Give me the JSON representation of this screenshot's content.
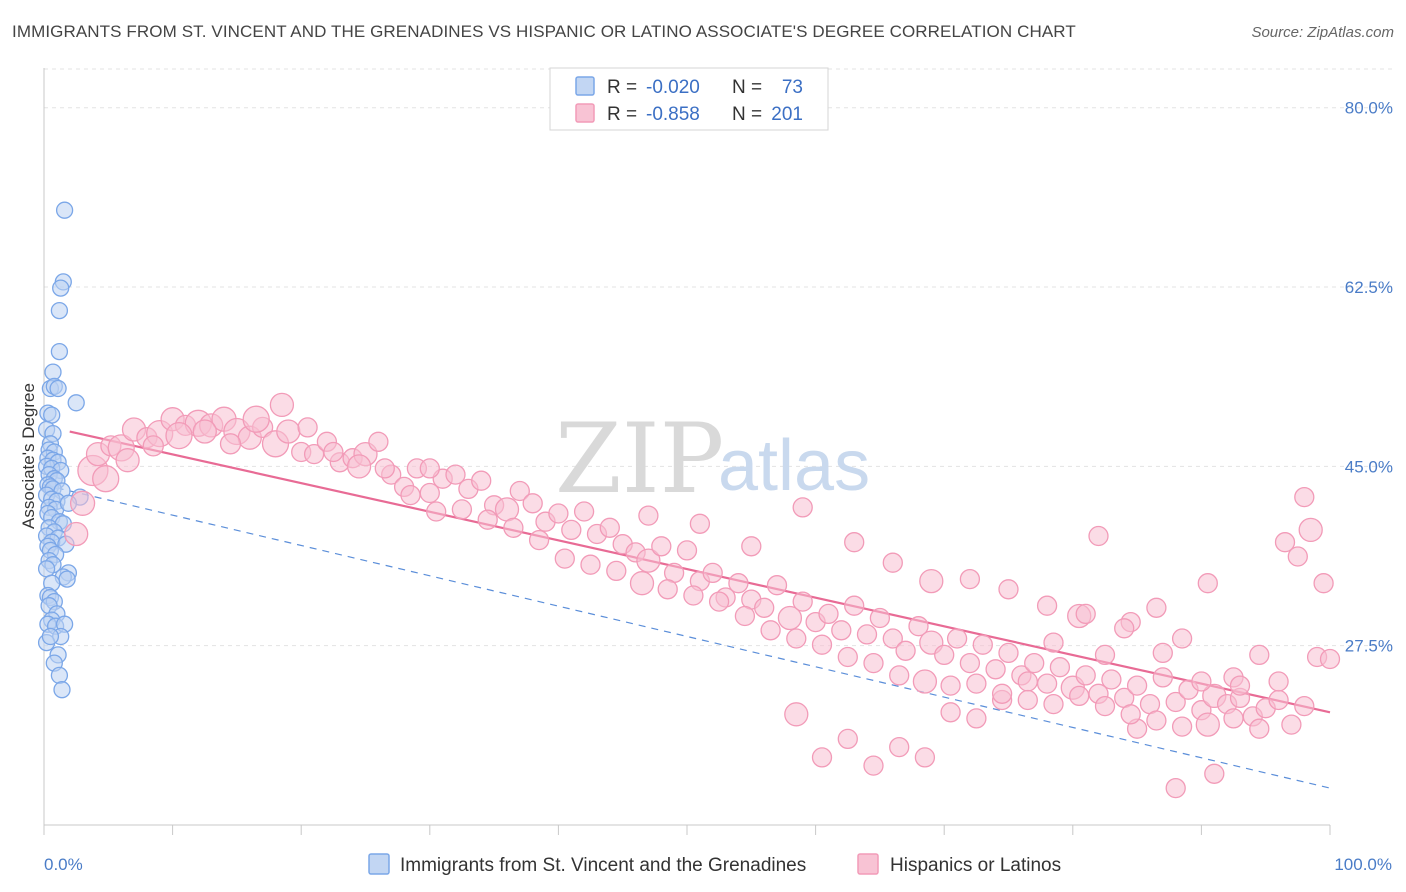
{
  "title": "IMMIGRANTS FROM ST. VINCENT AND THE GRENADINES VS HISPANIC OR LATINO ASSOCIATE'S DEGREE CORRELATION CHART",
  "source": "Source: ZipAtlas.com",
  "watermark": {
    "zip": "ZIP",
    "atlas": "atlas"
  },
  "legend": {
    "r_label": "R =",
    "n_label": "N =",
    "rows": [
      {
        "r": "-0.020",
        "n": "73",
        "color": "#7ba7e8"
      },
      {
        "r": "-0.858",
        "n": "201",
        "color": "#f29bb8"
      }
    ]
  },
  "bottom_legend": [
    {
      "label": "Immigrants from St. Vincent and the Grenadines",
      "color": "#7ba7e8"
    },
    {
      "label": "Hispanics or Latinos",
      "color": "#f29bb8"
    }
  ],
  "chart_data": {
    "type": "scatter",
    "title": "IMMIGRANTS FROM ST. VINCENT AND THE GRENADINES VS HISPANIC OR LATINO ASSOCIATE'S DEGREE CORRELATION CHART",
    "xlabel": "",
    "ylabel": "Associate's Degree",
    "xlim": [
      0,
      100
    ],
    "ylim": [
      10,
      83
    ],
    "x_ticks": [
      "0.0%",
      "100.0%"
    ],
    "y_ticks": [
      {
        "value": 80.0,
        "label": "80.0%"
      },
      {
        "value": 62.5,
        "label": "62.5%"
      },
      {
        "value": 45.0,
        "label": "45.0%"
      },
      {
        "value": 27.5,
        "label": "27.5%"
      }
    ],
    "grid": true,
    "legend_position": "top-center",
    "series": [
      {
        "name": "Immigrants from St. Vincent and the Grenadines",
        "color": "#7ba7e8",
        "trend": {
          "x": [
            0,
            100
          ],
          "y": [
            43.2,
            13.6
          ],
          "style": "dashed"
        },
        "points": [
          [
            1.6,
            70.0
          ],
          [
            1.5,
            63.0
          ],
          [
            1.3,
            62.4
          ],
          [
            1.2,
            60.2
          ],
          [
            1.2,
            56.2
          ],
          [
            0.7,
            54.2
          ],
          [
            0.5,
            52.6
          ],
          [
            0.8,
            52.8
          ],
          [
            1.1,
            52.6
          ],
          [
            2.5,
            51.2
          ],
          [
            0.3,
            50.2
          ],
          [
            0.6,
            50.0
          ],
          [
            0.2,
            48.6
          ],
          [
            0.7,
            48.2
          ],
          [
            0.5,
            47.2
          ],
          [
            0.4,
            46.6
          ],
          [
            0.8,
            46.4
          ],
          [
            0.3,
            45.8
          ],
          [
            0.7,
            45.6
          ],
          [
            1.1,
            45.4
          ],
          [
            0.2,
            45.0
          ],
          [
            0.6,
            44.8
          ],
          [
            1.3,
            44.6
          ],
          [
            0.4,
            44.2
          ],
          [
            0.8,
            43.8
          ],
          [
            1.0,
            43.6
          ],
          [
            0.3,
            43.2
          ],
          [
            0.5,
            43.0
          ],
          [
            0.7,
            42.8
          ],
          [
            1.4,
            42.6
          ],
          [
            0.2,
            42.2
          ],
          [
            2.8,
            42.0
          ],
          [
            0.6,
            41.8
          ],
          [
            1.0,
            41.6
          ],
          [
            0.4,
            41.0
          ],
          [
            0.9,
            40.8
          ],
          [
            0.3,
            40.4
          ],
          [
            0.6,
            40.0
          ],
          [
            1.2,
            39.6
          ],
          [
            1.5,
            39.4
          ],
          [
            0.4,
            39.0
          ],
          [
            0.8,
            38.6
          ],
          [
            0.2,
            38.2
          ],
          [
            1.1,
            38.0
          ],
          [
            0.6,
            37.6
          ],
          [
            1.7,
            37.4
          ],
          [
            0.3,
            37.2
          ],
          [
            0.5,
            36.8
          ],
          [
            0.9,
            36.4
          ],
          [
            0.4,
            35.8
          ],
          [
            0.7,
            35.4
          ],
          [
            0.2,
            35.0
          ],
          [
            1.9,
            34.6
          ],
          [
            1.5,
            34.2
          ],
          [
            1.8,
            34.0
          ],
          [
            0.6,
            33.6
          ],
          [
            0.3,
            32.4
          ],
          [
            0.5,
            32.2
          ],
          [
            0.8,
            31.8
          ],
          [
            0.4,
            31.4
          ],
          [
            1.0,
            30.6
          ],
          [
            0.6,
            30.0
          ],
          [
            0.3,
            29.6
          ],
          [
            0.9,
            29.4
          ],
          [
            1.6,
            29.6
          ],
          [
            1.3,
            28.4
          ],
          [
            1.1,
            26.6
          ],
          [
            0.8,
            25.8
          ],
          [
            1.2,
            24.6
          ],
          [
            1.4,
            23.2
          ],
          [
            0.2,
            27.8
          ],
          [
            0.5,
            28.4
          ],
          [
            1.9,
            41.4
          ]
        ]
      },
      {
        "name": "Hispanics or Latinos",
        "color": "#f29bb8",
        "trend": {
          "x": [
            2,
            100
          ],
          "y": [
            48.4,
            21.0
          ],
          "style": "solid"
        },
        "points": [
          [
            3.8,
            44.6
          ],
          [
            4.2,
            46.2
          ],
          [
            5.2,
            47.0
          ],
          [
            6.0,
            46.8
          ],
          [
            7.0,
            48.6
          ],
          [
            8.0,
            47.8
          ],
          [
            9.0,
            48.2
          ],
          [
            10.0,
            49.6
          ],
          [
            11.0,
            49.0
          ],
          [
            12.0,
            49.2
          ],
          [
            13.0,
            49.0
          ],
          [
            14.0,
            49.6
          ],
          [
            15.0,
            48.4
          ],
          [
            16.0,
            47.8
          ],
          [
            17.0,
            48.8
          ],
          [
            18.0,
            47.2
          ],
          [
            19.0,
            48.4
          ],
          [
            20.0,
            46.4
          ],
          [
            21.0,
            46.2
          ],
          [
            22.0,
            47.4
          ],
          [
            23.0,
            45.4
          ],
          [
            24.0,
            45.8
          ],
          [
            25.0,
            46.2
          ],
          [
            26.0,
            47.4
          ],
          [
            27.0,
            44.2
          ],
          [
            28.0,
            43.0
          ],
          [
            29.0,
            44.8
          ],
          [
            30.0,
            42.4
          ],
          [
            31.0,
            43.8
          ],
          [
            32.0,
            44.2
          ],
          [
            33.0,
            42.8
          ],
          [
            34.0,
            43.6
          ],
          [
            35.0,
            41.2
          ],
          [
            36.0,
            40.8
          ],
          [
            37.0,
            42.6
          ],
          [
            38.0,
            41.4
          ],
          [
            39.0,
            39.6
          ],
          [
            40.0,
            40.4
          ],
          [
            41.0,
            38.8
          ],
          [
            42.0,
            40.6
          ],
          [
            43.0,
            38.4
          ],
          [
            44.0,
            39.0
          ],
          [
            45.0,
            37.4
          ],
          [
            46.0,
            36.6
          ],
          [
            47.0,
            35.8
          ],
          [
            48.0,
            37.2
          ],
          [
            49.0,
            34.6
          ],
          [
            50.0,
            36.8
          ],
          [
            51.0,
            33.8
          ],
          [
            52.0,
            34.6
          ],
          [
            53.0,
            32.2
          ],
          [
            54.0,
            33.6
          ],
          [
            55.0,
            32.0
          ],
          [
            56.0,
            31.2
          ],
          [
            57.0,
            33.4
          ],
          [
            58.0,
            30.2
          ],
          [
            59.0,
            31.8
          ],
          [
            60.0,
            29.8
          ],
          [
            61.0,
            30.6
          ],
          [
            62.0,
            29.0
          ],
          [
            63.0,
            31.4
          ],
          [
            64.0,
            28.6
          ],
          [
            65.0,
            30.2
          ],
          [
            66.0,
            28.2
          ],
          [
            67.0,
            27.0
          ],
          [
            68.0,
            29.4
          ],
          [
            69.0,
            27.8
          ],
          [
            70.0,
            26.6
          ],
          [
            71.0,
            28.2
          ],
          [
            72.0,
            25.8
          ],
          [
            73.0,
            27.6
          ],
          [
            74.0,
            25.2
          ],
          [
            75.0,
            26.8
          ],
          [
            76.0,
            24.6
          ],
          [
            77.0,
            25.8
          ],
          [
            78.0,
            23.8
          ],
          [
            79.0,
            25.4
          ],
          [
            80.0,
            23.4
          ],
          [
            81.0,
            24.6
          ],
          [
            82.0,
            22.8
          ],
          [
            83.0,
            24.2
          ],
          [
            84.0,
            22.4
          ],
          [
            85.0,
            23.6
          ],
          [
            86.0,
            21.8
          ],
          [
            87.0,
            24.4
          ],
          [
            88.0,
            22.0
          ],
          [
            89.0,
            23.2
          ],
          [
            90.0,
            21.2
          ],
          [
            91.0,
            22.6
          ],
          [
            92.0,
            21.8
          ],
          [
            93.0,
            22.4
          ],
          [
            94.0,
            20.6
          ],
          [
            95.0,
            21.4
          ],
          [
            96.0,
            22.2
          ],
          [
            97.0,
            19.8
          ],
          [
            98.0,
            21.6
          ],
          [
            99.0,
            26.4
          ],
          [
            100.0,
            26.2
          ],
          [
            99.5,
            33.6
          ],
          [
            98.5,
            38.8
          ],
          [
            97.5,
            36.2
          ],
          [
            98.0,
            42.0
          ],
          [
            96.5,
            37.6
          ],
          [
            94.5,
            26.6
          ],
          [
            92.5,
            24.4
          ],
          [
            90.5,
            33.6
          ],
          [
            88.5,
            28.2
          ],
          [
            86.5,
            31.2
          ],
          [
            84.5,
            29.8
          ],
          [
            82.5,
            26.6
          ],
          [
            80.5,
            30.4
          ],
          [
            78.5,
            27.8
          ],
          [
            76.5,
            24.0
          ],
          [
            74.5,
            22.2
          ],
          [
            72.5,
            20.4
          ],
          [
            70.5,
            21.0
          ],
          [
            68.5,
            16.6
          ],
          [
            66.5,
            17.6
          ],
          [
            64.5,
            15.8
          ],
          [
            62.5,
            18.4
          ],
          [
            60.5,
            16.6
          ],
          [
            58.5,
            20.8
          ],
          [
            91.0,
            15.0
          ],
          [
            88.0,
            13.6
          ],
          [
            85.0,
            19.4
          ],
          [
            82.0,
            38.2
          ],
          [
            47.0,
            40.2
          ],
          [
            51.0,
            39.4
          ],
          [
            55.0,
            37.2
          ],
          [
            59.0,
            41.0
          ],
          [
            63.0,
            37.6
          ],
          [
            66.0,
            35.6
          ],
          [
            69.0,
            33.8
          ],
          [
            72.0,
            34.0
          ],
          [
            75.0,
            33.0
          ],
          [
            78.0,
            31.4
          ],
          [
            81.0,
            30.6
          ],
          [
            84.0,
            29.2
          ],
          [
            87.0,
            26.8
          ],
          [
            90.0,
            24.0
          ],
          [
            93.0,
            23.6
          ],
          [
            96.0,
            24.0
          ],
          [
            2.5,
            38.4
          ],
          [
            3.0,
            41.4
          ],
          [
            4.8,
            43.8
          ],
          [
            6.5,
            45.6
          ],
          [
            8.5,
            47.0
          ],
          [
            10.5,
            48.0
          ],
          [
            12.5,
            48.4
          ],
          [
            14.5,
            47.2
          ],
          [
            16.5,
            49.6
          ],
          [
            18.5,
            51.0
          ],
          [
            20.5,
            48.8
          ],
          [
            22.5,
            46.4
          ],
          [
            24.5,
            45.0
          ],
          [
            26.5,
            44.8
          ],
          [
            28.5,
            42.2
          ],
          [
            30.5,
            40.6
          ],
          [
            32.5,
            40.8
          ],
          [
            34.5,
            39.8
          ],
          [
            36.5,
            39.0
          ],
          [
            38.5,
            37.8
          ],
          [
            40.5,
            36.0
          ],
          [
            42.5,
            35.4
          ],
          [
            44.5,
            34.8
          ],
          [
            46.5,
            33.6
          ],
          [
            48.5,
            33.0
          ],
          [
            50.5,
            32.4
          ],
          [
            52.5,
            31.8
          ],
          [
            54.5,
            30.4
          ],
          [
            56.5,
            29.0
          ],
          [
            58.5,
            28.2
          ],
          [
            60.5,
            27.6
          ],
          [
            62.5,
            26.4
          ],
          [
            64.5,
            25.8
          ],
          [
            66.5,
            24.6
          ],
          [
            68.5,
            24.0
          ],
          [
            70.5,
            23.6
          ],
          [
            72.5,
            23.8
          ],
          [
            74.5,
            22.8
          ],
          [
            76.5,
            22.2
          ],
          [
            78.5,
            21.8
          ],
          [
            80.5,
            22.6
          ],
          [
            82.5,
            21.6
          ],
          [
            84.5,
            20.8
          ],
          [
            86.5,
            20.2
          ],
          [
            88.5,
            19.6
          ],
          [
            90.5,
            19.8
          ],
          [
            92.5,
            20.4
          ],
          [
            94.5,
            19.4
          ],
          [
            30.0,
            44.8
          ]
        ]
      }
    ]
  }
}
